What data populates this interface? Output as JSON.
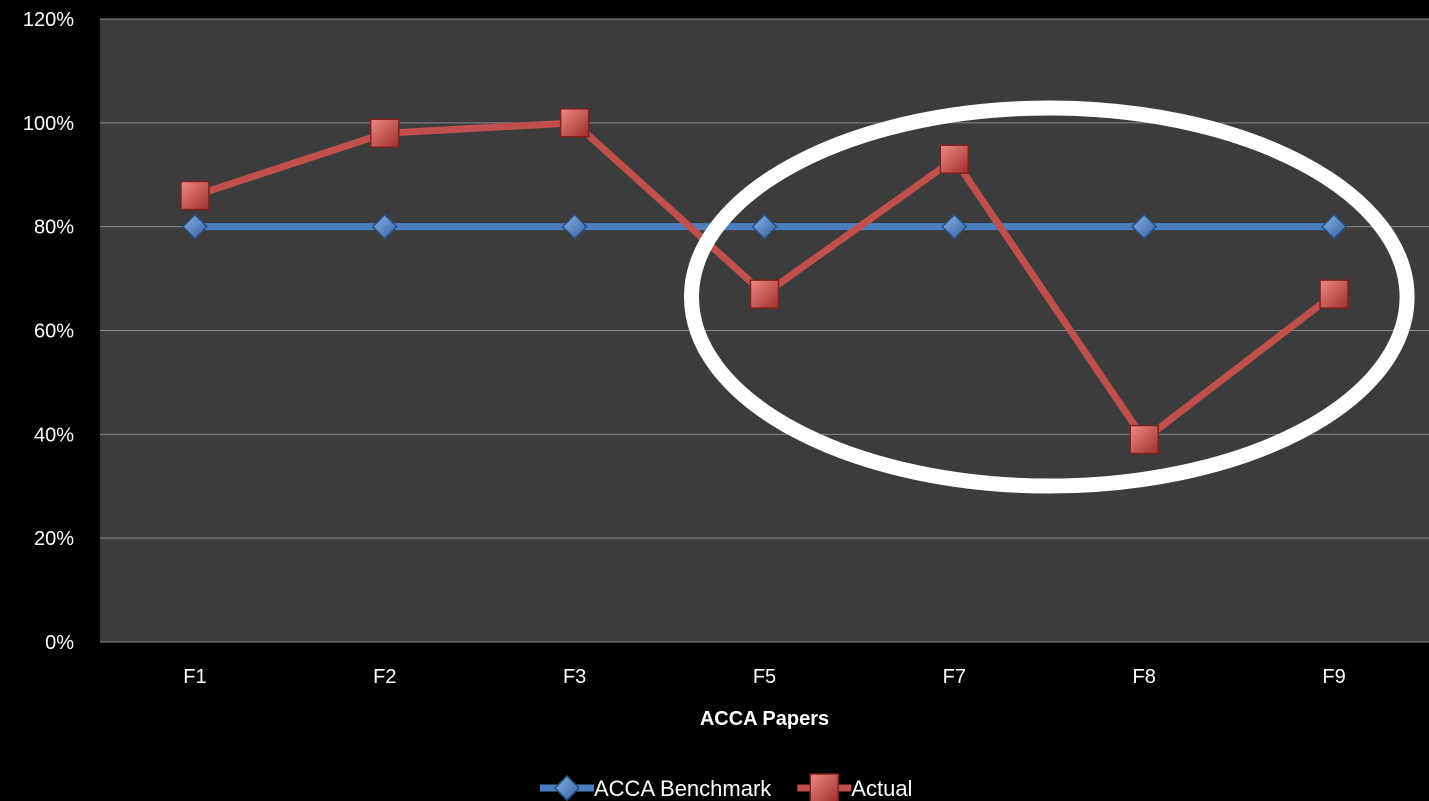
{
  "chart_data": {
    "type": "line",
    "title": "",
    "xlabel": "ACCA Papers",
    "ylabel": "",
    "categories": [
      "F1",
      "F2",
      "F3",
      "F5",
      "F7",
      "F8",
      "F9"
    ],
    "ylim": [
      0,
      120
    ],
    "yticks": [
      0,
      20,
      40,
      60,
      80,
      100,
      120
    ],
    "ytick_labels": [
      "0%",
      "20%",
      "40%",
      "60%",
      "80%",
      "100%",
      "120%"
    ],
    "grid": true,
    "legend_position": "bottom",
    "series": [
      {
        "name": "ACCA Benchmark",
        "values": [
          80,
          80,
          80,
          80,
          80,
          80,
          80
        ],
        "color": "#4a7ebf",
        "marker": "diamond"
      },
      {
        "name": "Actual",
        "values": [
          86,
          98,
          100,
          67,
          93,
          39,
          67
        ],
        "color": "#c0504d",
        "marker": "square"
      }
    ],
    "annotations": [
      {
        "type": "ellipse",
        "color": "#ffffff",
        "highlights": [
          "F5",
          "F7",
          "F8",
          "F9"
        ]
      }
    ],
    "colors": {
      "background": "#000000",
      "plot_area": "#3c3c3c",
      "grid": "#8a8a8a",
      "text": "#ffffff"
    }
  }
}
